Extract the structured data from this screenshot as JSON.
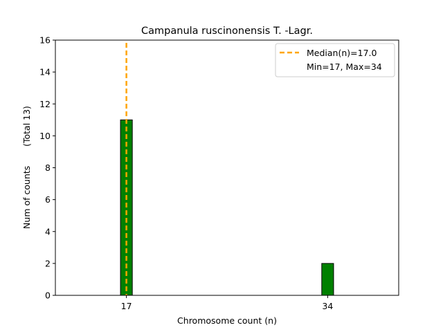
{
  "chart_data": {
    "type": "bar",
    "title": "Campanula ruscinonensis T. -Lagr.",
    "xlabel": "Chromosome count (n)",
    "ylabel": "Num of counts       (Total 13)",
    "x": [
      17,
      34
    ],
    "values": [
      11,
      2
    ],
    "xticks": [
      17,
      34
    ],
    "xtick_labels": [
      "17",
      "34"
    ],
    "yticks": [
      0,
      2,
      4,
      6,
      8,
      10,
      12,
      14,
      16
    ],
    "ytick_labels": [
      "0",
      "2",
      "4",
      "6",
      "8",
      "10",
      "12",
      "14",
      "16"
    ],
    "xlim": [
      11.0,
      40.0
    ],
    "ylim": [
      0,
      16
    ],
    "bar_width": 1.0,
    "median": 17.0,
    "legend": {
      "placement": "upper right",
      "entries": [
        "Median(n)=17.0",
        "Min=17, Max=34"
      ]
    },
    "colors": {
      "bar_fill": "#008000",
      "bar_edge": "#000000",
      "median_line": "#FFA500"
    }
  }
}
